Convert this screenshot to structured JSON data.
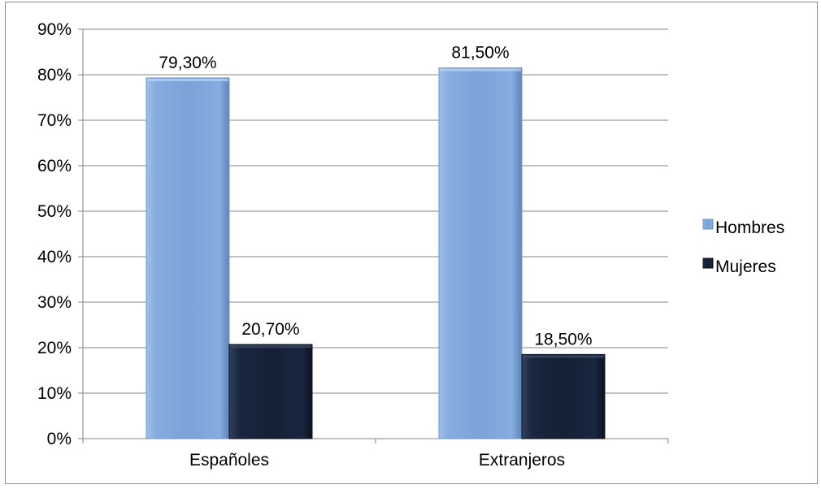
{
  "chart_data": {
    "type": "bar",
    "categories": [
      "Españoles",
      "Extranjeros"
    ],
    "series": [
      {
        "name": "Hombres",
        "values": [
          79.3,
          81.5
        ],
        "labels": [
          "79,30%",
          "81,50%"
        ],
        "color": "#7FA6D6"
      },
      {
        "name": "Mujeres",
        "values": [
          20.7,
          18.5
        ],
        "labels": [
          "20,70%",
          "18,50%"
        ],
        "color": "#142033"
      }
    ],
    "ylim": [
      0,
      90
    ],
    "yticks": [
      0,
      10,
      20,
      30,
      40,
      50,
      60,
      70,
      80,
      90
    ],
    "ytick_labels": [
      "0%",
      "10%",
      "20%",
      "30%",
      "40%",
      "50%",
      "60%",
      "70%",
      "80%",
      "90%"
    ],
    "grid": true,
    "legend_position": "right",
    "title": "",
    "xlabel": "",
    "ylabel": ""
  }
}
